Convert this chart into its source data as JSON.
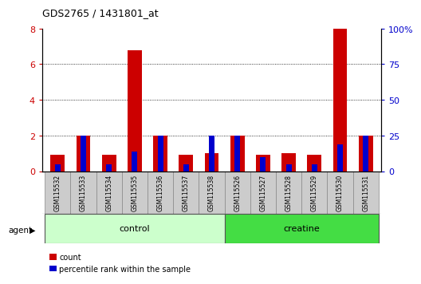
{
  "title": "GDS2765 / 1431801_at",
  "categories": [
    "GSM115532",
    "GSM115533",
    "GSM115534",
    "GSM115535",
    "GSM115536",
    "GSM115537",
    "GSM115538",
    "GSM115526",
    "GSM115527",
    "GSM115528",
    "GSM115529",
    "GSM115530",
    "GSM115531"
  ],
  "count_values": [
    0.9,
    2.0,
    0.9,
    6.8,
    2.0,
    0.9,
    1.0,
    2.0,
    0.9,
    1.0,
    0.9,
    8.0,
    2.0
  ],
  "percentile_values": [
    5,
    25,
    5,
    14,
    25,
    5,
    25,
    25,
    10,
    5,
    5,
    19,
    25
  ],
  "groups": [
    {
      "label": "control",
      "color": "#ccffcc",
      "start": 0,
      "end": 7
    },
    {
      "label": "creatine",
      "color": "#44dd44",
      "start": 7,
      "end": 13
    }
  ],
  "agent_label": "agent",
  "ylim_left": [
    0,
    8
  ],
  "ylim_right": [
    0,
    100
  ],
  "yticks_left": [
    0,
    2,
    4,
    6,
    8
  ],
  "ytick_labels_left": [
    "0",
    "2",
    "4",
    "6",
    "8"
  ],
  "yticks_right": [
    0,
    25,
    50,
    75,
    100
  ],
  "ytick_labels_right": [
    "0",
    "25",
    "50",
    "75",
    "100%"
  ],
  "bar_color_count": "#cc0000",
  "bar_color_percentile": "#0000cc",
  "grid_lines": [
    2,
    4,
    6
  ],
  "bg_color": "#ffffff",
  "tick_label_box_color": "#cccccc",
  "legend_count": "count",
  "legend_percentile": "percentile rank within the sample"
}
